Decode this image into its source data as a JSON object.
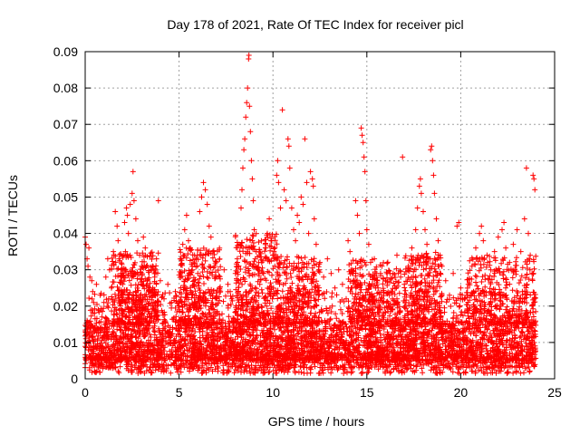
{
  "chart_data": {
    "type": "scatter",
    "title": "Day 178 of 2021, Rate Of TEC Index for receiver picl",
    "xlabel": "GPS time / hours",
    "ylabel": "ROTI / TECUs",
    "xlim": [
      0,
      25
    ],
    "ylim": [
      0,
      0.09
    ],
    "xticks": [
      0,
      5,
      10,
      15,
      20,
      25
    ],
    "xtick_labels": [
      "0",
      "5",
      "10",
      "15",
      "20",
      "25"
    ],
    "yticks": [
      0,
      0.01,
      0.02,
      0.03,
      0.04,
      0.05,
      0.06,
      0.07,
      0.08,
      0.09
    ],
    "ytick_labels": [
      "0",
      "0.01",
      "0.02",
      "0.03",
      "0.04",
      "0.05",
      "0.06",
      "0.07",
      "0.08",
      "0.09"
    ],
    "grid": true,
    "marker": "+",
    "series": [
      {
        "name": "ROTI",
        "color": "#ff0000",
        "points": [
          [
            0.0,
            0.039
          ],
          [
            0.05,
            0.037
          ],
          [
            0.1,
            0.033
          ],
          [
            0.15,
            0.031
          ],
          [
            0.2,
            0.036
          ],
          [
            0.25,
            0.028
          ],
          [
            0.1,
            0.016
          ],
          [
            0.2,
            0.012
          ],
          [
            0.3,
            0.009
          ],
          [
            0.35,
            0.027
          ],
          [
            0.4,
            0.024
          ],
          [
            0.45,
            0.021
          ],
          [
            0.5,
            0.018
          ],
          [
            0.6,
            0.026
          ],
          [
            0.7,
            0.019
          ],
          [
            0.8,
            0.023
          ],
          [
            0.9,
            0.017
          ],
          [
            1.0,
            0.021
          ],
          [
            1.1,
            0.028
          ],
          [
            1.2,
            0.033
          ],
          [
            1.3,
            0.03
          ],
          [
            1.4,
            0.025
          ],
          [
            1.5,
            0.035
          ],
          [
            1.6,
            0.046
          ],
          [
            1.7,
            0.042
          ],
          [
            1.75,
            0.038
          ],
          [
            1.8,
            0.033
          ],
          [
            1.9,
            0.029
          ],
          [
            2.0,
            0.026
          ],
          [
            2.1,
            0.043
          ],
          [
            2.2,
            0.047
          ],
          [
            2.25,
            0.045
          ],
          [
            2.3,
            0.04
          ],
          [
            2.4,
            0.048
          ],
          [
            2.5,
            0.051
          ],
          [
            2.55,
            0.057
          ],
          [
            2.6,
            0.049
          ],
          [
            2.7,
            0.044
          ],
          [
            2.8,
            0.038
          ],
          [
            2.9,
            0.034
          ],
          [
            3.0,
            0.031
          ],
          [
            3.1,
            0.039
          ],
          [
            3.2,
            0.036
          ],
          [
            3.3,
            0.027
          ],
          [
            3.4,
            0.024
          ],
          [
            3.5,
            0.03
          ],
          [
            3.6,
            0.025
          ],
          [
            3.7,
            0.028
          ],
          [
            3.8,
            0.033
          ],
          [
            3.9,
            0.049
          ],
          [
            4.0,
            0.027
          ],
          [
            4.2,
            0.022
          ],
          [
            4.4,
            0.026
          ],
          [
            4.6,
            0.021
          ],
          [
            4.8,
            0.024
          ],
          [
            5.0,
            0.019
          ],
          [
            5.1,
            0.033
          ],
          [
            5.2,
            0.037
          ],
          [
            5.3,
            0.041
          ],
          [
            5.4,
            0.045
          ],
          [
            5.5,
            0.038
          ],
          [
            5.6,
            0.036
          ],
          [
            5.7,
            0.03
          ],
          [
            5.8,
            0.027
          ],
          [
            5.9,
            0.033
          ],
          [
            6.0,
            0.029
          ],
          [
            6.1,
            0.046
          ],
          [
            6.2,
            0.05
          ],
          [
            6.3,
            0.054
          ],
          [
            6.4,
            0.052
          ],
          [
            6.5,
            0.048
          ],
          [
            6.6,
            0.042
          ],
          [
            6.7,
            0.039
          ],
          [
            6.8,
            0.035
          ],
          [
            6.9,
            0.031
          ],
          [
            7.0,
            0.028
          ],
          [
            7.2,
            0.024
          ],
          [
            7.4,
            0.03
          ],
          [
            7.6,
            0.026
          ],
          [
            7.8,
            0.022
          ],
          [
            8.0,
            0.029
          ],
          [
            8.1,
            0.033
          ],
          [
            8.2,
            0.037
          ],
          [
            8.3,
            0.047
          ],
          [
            8.35,
            0.052
          ],
          [
            8.4,
            0.058
          ],
          [
            8.45,
            0.063
          ],
          [
            8.5,
            0.066
          ],
          [
            8.55,
            0.072
          ],
          [
            8.6,
            0.076
          ],
          [
            8.65,
            0.08
          ],
          [
            8.7,
            0.088
          ],
          [
            8.72,
            0.089
          ],
          [
            8.75,
            0.075
          ],
          [
            8.8,
            0.068
          ],
          [
            8.85,
            0.06
          ],
          [
            8.9,
            0.055
          ],
          [
            8.95,
            0.049
          ],
          [
            9.0,
            0.041
          ],
          [
            9.1,
            0.035
          ],
          [
            9.2,
            0.03
          ],
          [
            9.3,
            0.026
          ],
          [
            9.4,
            0.032
          ],
          [
            9.5,
            0.029
          ],
          [
            9.6,
            0.036
          ],
          [
            9.7,
            0.04
          ],
          [
            9.8,
            0.044
          ],
          [
            9.9,
            0.038
          ],
          [
            10.0,
            0.034
          ],
          [
            10.1,
            0.031
          ],
          [
            10.2,
            0.056
          ],
          [
            10.25,
            0.06
          ],
          [
            10.3,
            0.054
          ],
          [
            10.4,
            0.047
          ],
          [
            10.5,
            0.074
          ],
          [
            10.6,
            0.052
          ],
          [
            10.7,
            0.049
          ],
          [
            10.8,
            0.066
          ],
          [
            10.85,
            0.064
          ],
          [
            10.9,
            0.058
          ],
          [
            11.0,
            0.047
          ],
          [
            11.1,
            0.041
          ],
          [
            11.2,
            0.038
          ],
          [
            11.3,
            0.045
          ],
          [
            11.4,
            0.043
          ],
          [
            11.5,
            0.05
          ],
          [
            11.6,
            0.048
          ],
          [
            11.7,
            0.066
          ],
          [
            11.8,
            0.054
          ],
          [
            11.9,
            0.04
          ],
          [
            12.0,
            0.057
          ],
          [
            12.1,
            0.055
          ],
          [
            12.15,
            0.053
          ],
          [
            12.2,
            0.044
          ],
          [
            12.3,
            0.037
          ],
          [
            12.5,
            0.032
          ],
          [
            12.7,
            0.028
          ],
          [
            12.9,
            0.033
          ],
          [
            13.1,
            0.029
          ],
          [
            13.3,
            0.025
          ],
          [
            13.5,
            0.03
          ],
          [
            13.7,
            0.026
          ],
          [
            13.9,
            0.022
          ],
          [
            14.0,
            0.038
          ],
          [
            14.1,
            0.035
          ],
          [
            14.2,
            0.03
          ],
          [
            14.3,
            0.027
          ],
          [
            14.4,
            0.049
          ],
          [
            14.5,
            0.045
          ],
          [
            14.6,
            0.04
          ],
          [
            14.7,
            0.069
          ],
          [
            14.75,
            0.067
          ],
          [
            14.8,
            0.065
          ],
          [
            14.85,
            0.061
          ],
          [
            14.9,
            0.057
          ],
          [
            14.95,
            0.049
          ],
          [
            15.0,
            0.041
          ],
          [
            15.1,
            0.037
          ],
          [
            15.2,
            0.032
          ],
          [
            15.3,
            0.028
          ],
          [
            15.4,
            0.033
          ],
          [
            15.5,
            0.029
          ],
          [
            15.6,
            0.025
          ],
          [
            15.8,
            0.031
          ],
          [
            16.0,
            0.027
          ],
          [
            16.2,
            0.023
          ],
          [
            16.4,
            0.029
          ],
          [
            16.6,
            0.034
          ],
          [
            16.8,
            0.028
          ],
          [
            16.9,
            0.061
          ],
          [
            17.0,
            0.026
          ],
          [
            17.2,
            0.031
          ],
          [
            17.4,
            0.036
          ],
          [
            17.6,
            0.041
          ],
          [
            17.7,
            0.047
          ],
          [
            17.8,
            0.053
          ],
          [
            17.85,
            0.055
          ],
          [
            17.9,
            0.051
          ],
          [
            18.0,
            0.046
          ],
          [
            18.1,
            0.041
          ],
          [
            18.2,
            0.037
          ],
          [
            18.3,
            0.033
          ],
          [
            18.4,
            0.063
          ],
          [
            18.45,
            0.064
          ],
          [
            18.5,
            0.06
          ],
          [
            18.55,
            0.056
          ],
          [
            18.6,
            0.051
          ],
          [
            18.7,
            0.044
          ],
          [
            18.8,
            0.038
          ],
          [
            18.9,
            0.034
          ],
          [
            19.0,
            0.031
          ],
          [
            19.2,
            0.027
          ],
          [
            19.4,
            0.023
          ],
          [
            19.6,
            0.029
          ],
          [
            19.8,
            0.042
          ],
          [
            19.9,
            0.043
          ],
          [
            20.0,
            0.025
          ],
          [
            20.2,
            0.022
          ],
          [
            20.4,
            0.026
          ],
          [
            20.6,
            0.031
          ],
          [
            20.8,
            0.036
          ],
          [
            21.0,
            0.04
          ],
          [
            21.1,
            0.042
          ],
          [
            21.2,
            0.038
          ],
          [
            21.4,
            0.034
          ],
          [
            21.6,
            0.03
          ],
          [
            21.8,
            0.035
          ],
          [
            22.0,
            0.039
          ],
          [
            22.2,
            0.041
          ],
          [
            22.3,
            0.043
          ],
          [
            22.4,
            0.036
          ],
          [
            22.6,
            0.032
          ],
          [
            22.8,
            0.037
          ],
          [
            23.0,
            0.041
          ],
          [
            23.2,
            0.035
          ],
          [
            23.4,
            0.044
          ],
          [
            23.5,
            0.058
          ],
          [
            23.6,
            0.04
          ],
          [
            23.7,
            0.034
          ],
          [
            23.8,
            0.029
          ],
          [
            23.85,
            0.056
          ],
          [
            23.9,
            0.055
          ],
          [
            23.95,
            0.052
          ]
        ],
        "bands": [
          {
            "x": [
              0.0,
              24.0
            ],
            "y": [
              0.005,
              0.016
            ],
            "count": 2600
          },
          {
            "x": [
              0.0,
              24.0
            ],
            "y": [
              0.003,
              0.024
            ],
            "count": 1800
          },
          {
            "x": [
              0.0,
              24.0
            ],
            "y": [
              0.0015,
              0.007
            ],
            "count": 500
          },
          {
            "x": [
              1.4,
              3.9
            ],
            "y": [
              0.015,
              0.035
            ],
            "count": 350
          },
          {
            "x": [
              5.0,
              7.2
            ],
            "y": [
              0.015,
              0.036
            ],
            "count": 300
          },
          {
            "x": [
              8.0,
              10.3
            ],
            "y": [
              0.015,
              0.04
            ],
            "count": 320
          },
          {
            "x": [
              10.3,
              12.5
            ],
            "y": [
              0.015,
              0.034
            ],
            "count": 260
          },
          {
            "x": [
              14.0,
              16.8
            ],
            "y": [
              0.015,
              0.033
            ],
            "count": 320
          },
          {
            "x": [
              17.0,
              19.0
            ],
            "y": [
              0.015,
              0.035
            ],
            "count": 280
          },
          {
            "x": [
              20.3,
              24.0
            ],
            "y": [
              0.015,
              0.034
            ],
            "count": 320
          }
        ]
      }
    ]
  }
}
